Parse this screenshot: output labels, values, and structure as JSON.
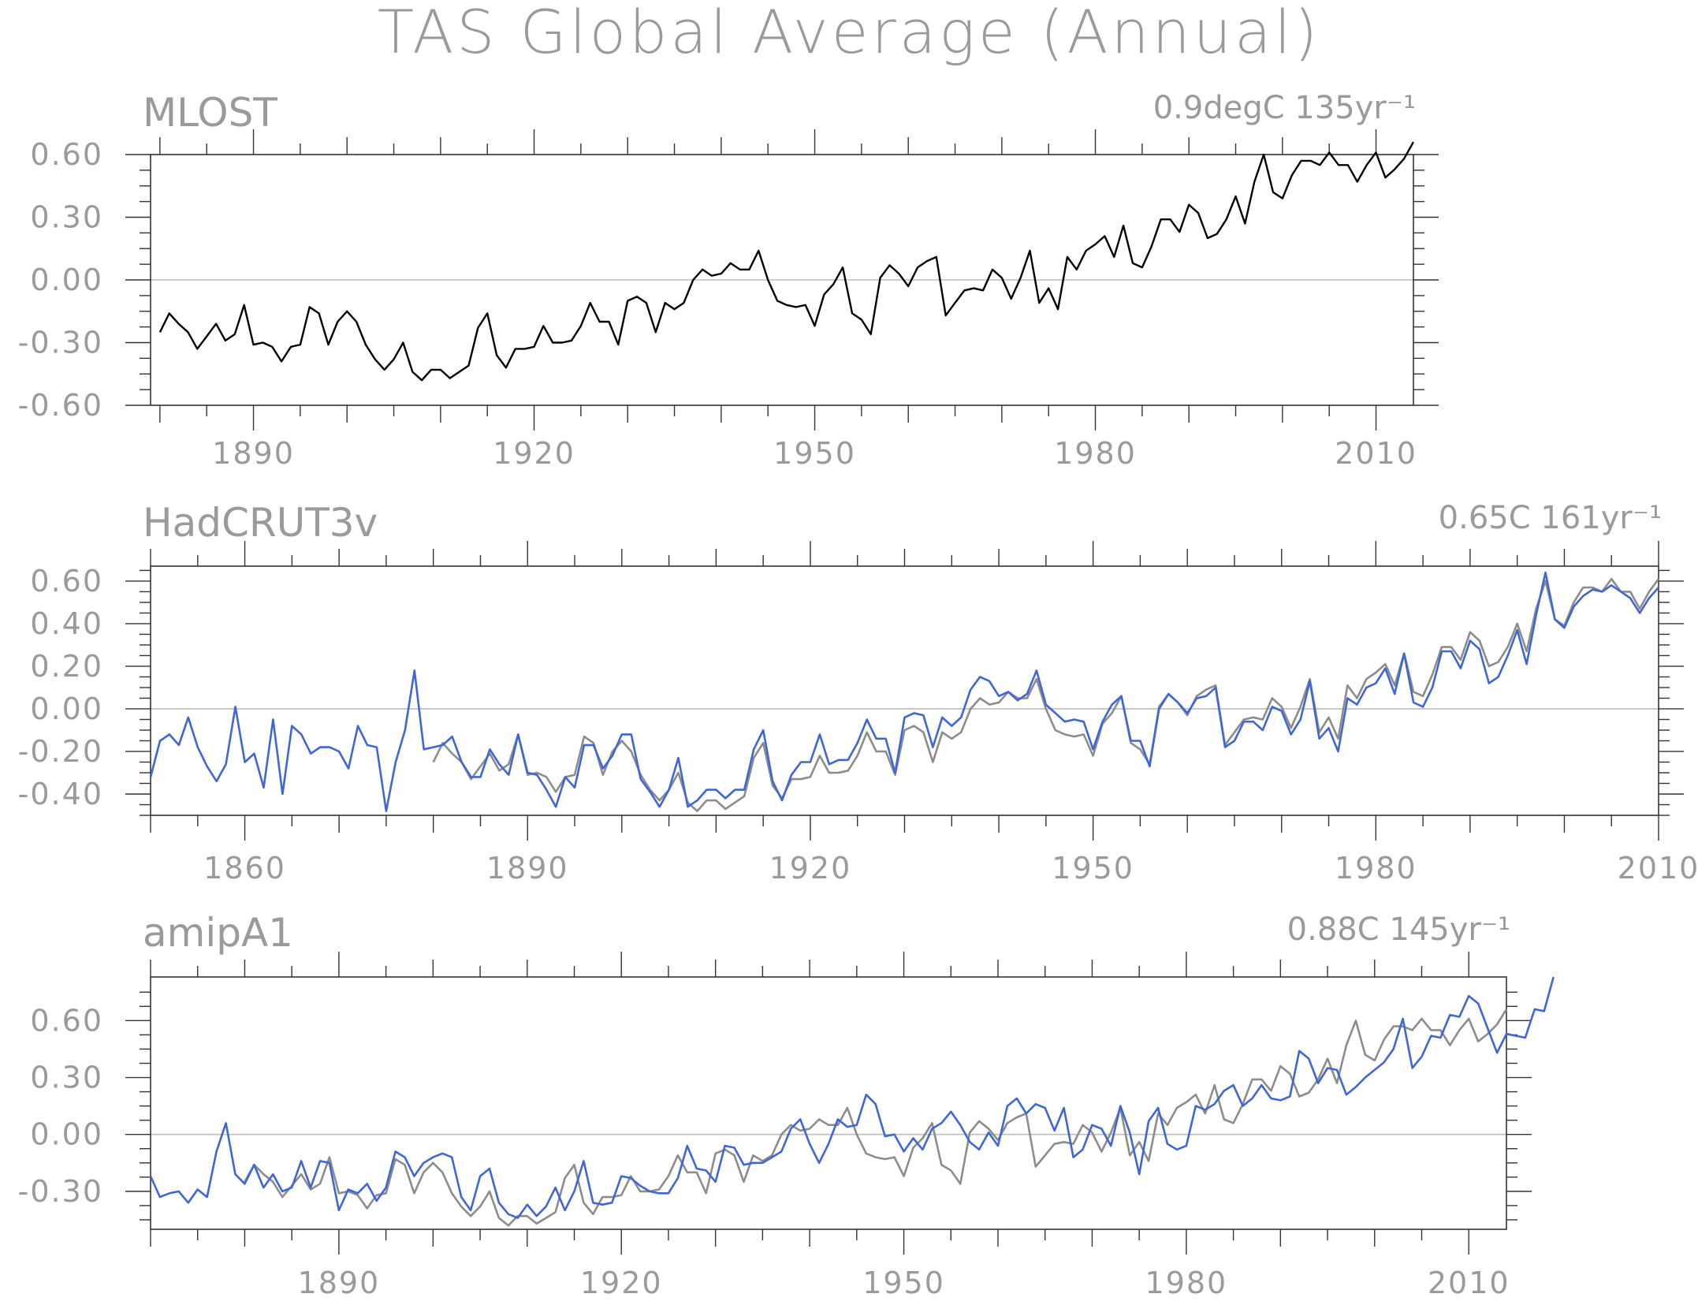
{
  "figure": {
    "title": "TAS Global Average (Annual)"
  },
  "colors": {
    "text": "#9a9a9a",
    "axis": "#333333",
    "zero_line": "#bdbdbd",
    "black_series": "#000000",
    "grey_series": "#8c8c8c",
    "blue_series": "#3f66d8"
  },
  "chart_data": [
    {
      "type": "line",
      "title": "MLOST",
      "annotation": "0.9degC 135yr⁻¹",
      "xlim": [
        1879,
        2014
      ],
      "ylim": [
        -0.6,
        0.6
      ],
      "x_ticks": [
        1890,
        1920,
        1950,
        1980,
        2010
      ],
      "x_tick_labels": [
        "1890",
        "1920",
        "1950",
        "1980",
        "2010"
      ],
      "y_ticks": [
        -0.6,
        -0.3,
        0.0,
        0.3,
        0.6
      ],
      "y_tick_labels": [
        "-0.60",
        "-0.30",
        "0.00",
        "0.30",
        "0.60"
      ],
      "series": [
        {
          "color": "black",
          "x_start": 1880,
          "values": [
            -0.25,
            -0.16,
            -0.21,
            -0.25,
            -0.33,
            -0.27,
            -0.21,
            -0.29,
            -0.26,
            -0.12,
            -0.31,
            -0.3,
            -0.32,
            -0.39,
            -0.32,
            -0.31,
            -0.13,
            -0.16,
            -0.31,
            -0.2,
            -0.15,
            -0.2,
            -0.31,
            -0.38,
            -0.43,
            -0.38,
            -0.3,
            -0.44,
            -0.48,
            -0.43,
            -0.43,
            -0.47,
            -0.44,
            -0.41,
            -0.23,
            -0.16,
            -0.36,
            -0.42,
            -0.33,
            -0.33,
            -0.32,
            -0.22,
            -0.3,
            -0.3,
            -0.29,
            -0.22,
            -0.11,
            -0.2,
            -0.2,
            -0.31,
            -0.1,
            -0.08,
            -0.11,
            -0.25,
            -0.11,
            -0.14,
            -0.11,
            0.0,
            0.05,
            0.02,
            0.03,
            0.08,
            0.05,
            0.05,
            0.14,
            0.0,
            -0.1,
            -0.12,
            -0.13,
            -0.12,
            -0.22,
            -0.07,
            -0.02,
            0.06,
            -0.16,
            -0.19,
            -0.26,
            0.01,
            0.07,
            0.03,
            -0.03,
            0.06,
            0.09,
            0.11,
            -0.17,
            -0.11,
            -0.05,
            -0.04,
            -0.05,
            0.05,
            0.01,
            -0.09,
            0.01,
            0.14,
            -0.11,
            -0.04,
            -0.14,
            0.11,
            0.05,
            0.14,
            0.17,
            0.21,
            0.11,
            0.26,
            0.08,
            0.06,
            0.16,
            0.29,
            0.29,
            0.23,
            0.36,
            0.32,
            0.2,
            0.22,
            0.29,
            0.4,
            0.27,
            0.47,
            0.6,
            0.42,
            0.39,
            0.5,
            0.57,
            0.57,
            0.55,
            0.61,
            0.55,
            0.55,
            0.47,
            0.55,
            0.61,
            0.49,
            0.53,
            0.58,
            0.66
          ]
        }
      ]
    },
    {
      "type": "line",
      "title": "HadCRUT3v",
      "annotation": "0.65C 161yr⁻¹",
      "xlim": [
        1850,
        2010
      ],
      "ylim": [
        -0.5,
        0.67
      ],
      "x_ticks": [
        1860,
        1890,
        1920,
        1950,
        1980,
        2010
      ],
      "x_tick_labels": [
        "1860",
        "1890",
        "1920",
        "1950",
        "1980",
        "2010"
      ],
      "y_ticks": [
        -0.4,
        -0.2,
        0.0,
        0.2,
        0.4,
        0.6
      ],
      "y_tick_labels": [
        "-0.40",
        "-0.20",
        "0.00",
        "0.20",
        "0.40",
        "0.60"
      ],
      "series": [
        {
          "color": "grey",
          "x_start": 1880,
          "values": [
            -0.25,
            -0.16,
            -0.21,
            -0.25,
            -0.33,
            -0.27,
            -0.21,
            -0.29,
            -0.26,
            -0.12,
            -0.31,
            -0.3,
            -0.32,
            -0.39,
            -0.32,
            -0.31,
            -0.13,
            -0.16,
            -0.31,
            -0.2,
            -0.15,
            -0.2,
            -0.31,
            -0.38,
            -0.43,
            -0.38,
            -0.3,
            -0.44,
            -0.48,
            -0.43,
            -0.43,
            -0.47,
            -0.44,
            -0.41,
            -0.23,
            -0.16,
            -0.36,
            -0.42,
            -0.33,
            -0.33,
            -0.32,
            -0.22,
            -0.3,
            -0.3,
            -0.29,
            -0.22,
            -0.11,
            -0.2,
            -0.2,
            -0.31,
            -0.1,
            -0.08,
            -0.11,
            -0.25,
            -0.11,
            -0.14,
            -0.11,
            0.0,
            0.05,
            0.02,
            0.03,
            0.08,
            0.05,
            0.05,
            0.14,
            0.0,
            -0.1,
            -0.12,
            -0.13,
            -0.12,
            -0.22,
            -0.07,
            -0.02,
            0.06,
            -0.16,
            -0.19,
            -0.26,
            0.01,
            0.07,
            0.03,
            -0.03,
            0.06,
            0.09,
            0.11,
            -0.17,
            -0.11,
            -0.05,
            -0.04,
            -0.05,
            0.05,
            0.01,
            -0.09,
            0.01,
            0.14,
            -0.11,
            -0.04,
            -0.14,
            0.11,
            0.05,
            0.14,
            0.17,
            0.21,
            0.11,
            0.26,
            0.08,
            0.06,
            0.16,
            0.29,
            0.29,
            0.23,
            0.36,
            0.32,
            0.2,
            0.22,
            0.29,
            0.4,
            0.27,
            0.47,
            0.6,
            0.42,
            0.39,
            0.5,
            0.57,
            0.57,
            0.55,
            0.61,
            0.55,
            0.55,
            0.47,
            0.55,
            0.61
          ]
        },
        {
          "color": "blue",
          "x_start": 1850,
          "values": [
            -0.32,
            -0.15,
            -0.12,
            -0.17,
            -0.04,
            -0.18,
            -0.27,
            -0.34,
            -0.26,
            0.01,
            -0.25,
            -0.21,
            -0.37,
            -0.05,
            -0.4,
            -0.08,
            -0.12,
            -0.21,
            -0.18,
            -0.18,
            -0.2,
            -0.28,
            -0.08,
            -0.17,
            -0.18,
            -0.48,
            -0.25,
            -0.1,
            0.18,
            -0.19,
            -0.18,
            -0.17,
            -0.13,
            -0.25,
            -0.32,
            -0.32,
            -0.19,
            -0.26,
            -0.31,
            -0.12,
            -0.3,
            -0.31,
            -0.38,
            -0.46,
            -0.32,
            -0.37,
            -0.17,
            -0.17,
            -0.28,
            -0.22,
            -0.12,
            -0.12,
            -0.33,
            -0.39,
            -0.46,
            -0.38,
            -0.23,
            -0.46,
            -0.43,
            -0.38,
            -0.38,
            -0.42,
            -0.38,
            -0.38,
            -0.19,
            -0.1,
            -0.34,
            -0.43,
            -0.31,
            -0.25,
            -0.25,
            -0.12,
            -0.26,
            -0.24,
            -0.24,
            -0.16,
            -0.05,
            -0.14,
            -0.14,
            -0.3,
            -0.04,
            -0.02,
            -0.03,
            -0.18,
            -0.04,
            -0.08,
            -0.04,
            0.09,
            0.15,
            0.13,
            0.06,
            0.08,
            0.04,
            0.07,
            0.18,
            0.02,
            -0.02,
            -0.06,
            -0.05,
            -0.06,
            -0.19,
            -0.06,
            0.02,
            0.06,
            -0.15,
            -0.15,
            -0.27,
            0.0,
            0.07,
            0.03,
            -0.02,
            0.05,
            0.06,
            0.1,
            -0.18,
            -0.15,
            -0.06,
            -0.06,
            -0.1,
            0.01,
            -0.01,
            -0.12,
            -0.05,
            0.13,
            -0.14,
            -0.09,
            -0.2,
            0.05,
            0.02,
            0.1,
            0.12,
            0.19,
            0.07,
            0.26,
            0.03,
            0.01,
            0.1,
            0.27,
            0.27,
            0.19,
            0.32,
            0.28,
            0.12,
            0.15,
            0.25,
            0.37,
            0.21,
            0.44,
            0.64,
            0.42,
            0.38,
            0.48,
            0.53,
            0.56,
            0.55,
            0.58,
            0.55,
            0.52,
            0.45,
            0.52,
            0.57
          ]
        }
      ]
    },
    {
      "type": "line",
      "title": "amipA1",
      "annotation": "0.88C 145yr⁻¹",
      "xlim": [
        1870,
        2014
      ],
      "ylim": [
        -0.5,
        0.83
      ],
      "x_ticks": [
        1890,
        1920,
        1950,
        1980,
        2010
      ],
      "x_tick_labels": [
        "1890",
        "1920",
        "1950",
        "1980",
        "2010"
      ],
      "y_ticks": [
        -0.3,
        0.0,
        0.3,
        0.6
      ],
      "y_tick_labels": [
        "-0.30",
        "0.00",
        "0.30",
        "0.60"
      ],
      "series": [
        {
          "color": "grey",
          "x_start": 1880,
          "values": [
            -0.25,
            -0.16,
            -0.21,
            -0.25,
            -0.33,
            -0.27,
            -0.21,
            -0.29,
            -0.26,
            -0.12,
            -0.31,
            -0.3,
            -0.32,
            -0.39,
            -0.32,
            -0.31,
            -0.13,
            -0.16,
            -0.31,
            -0.2,
            -0.15,
            -0.2,
            -0.31,
            -0.38,
            -0.43,
            -0.38,
            -0.3,
            -0.44,
            -0.48,
            -0.43,
            -0.43,
            -0.47,
            -0.44,
            -0.41,
            -0.23,
            -0.16,
            -0.36,
            -0.42,
            -0.33,
            -0.33,
            -0.32,
            -0.22,
            -0.3,
            -0.3,
            -0.29,
            -0.22,
            -0.11,
            -0.2,
            -0.2,
            -0.31,
            -0.1,
            -0.08,
            -0.11,
            -0.25,
            -0.11,
            -0.14,
            -0.11,
            0.0,
            0.05,
            0.02,
            0.03,
            0.08,
            0.05,
            0.05,
            0.14,
            0.0,
            -0.1,
            -0.12,
            -0.13,
            -0.12,
            -0.22,
            -0.07,
            -0.02,
            0.06,
            -0.16,
            -0.19,
            -0.26,
            0.01,
            0.07,
            0.03,
            -0.03,
            0.06,
            0.09,
            0.11,
            -0.17,
            -0.11,
            -0.05,
            -0.04,
            -0.05,
            0.05,
            0.01,
            -0.09,
            0.01,
            0.14,
            -0.11,
            -0.04,
            -0.14,
            0.11,
            0.05,
            0.14,
            0.17,
            0.21,
            0.11,
            0.26,
            0.08,
            0.06,
            0.16,
            0.29,
            0.29,
            0.23,
            0.36,
            0.32,
            0.2,
            0.22,
            0.29,
            0.4,
            0.27,
            0.47,
            0.6,
            0.42,
            0.39,
            0.5,
            0.57,
            0.57,
            0.55,
            0.61,
            0.55,
            0.55,
            0.47,
            0.55,
            0.61,
            0.49,
            0.53,
            0.58,
            0.66
          ]
        },
        {
          "color": "blue",
          "x_start": 1870,
          "values": [
            -0.22,
            -0.33,
            -0.31,
            -0.3,
            -0.36,
            -0.29,
            -0.33,
            -0.09,
            0.06,
            -0.21,
            -0.26,
            -0.16,
            -0.28,
            -0.21,
            -0.3,
            -0.28,
            -0.14,
            -0.28,
            -0.14,
            -0.15,
            -0.4,
            -0.29,
            -0.31,
            -0.26,
            -0.35,
            -0.28,
            -0.09,
            -0.12,
            -0.22,
            -0.15,
            -0.12,
            -0.1,
            -0.12,
            -0.33,
            -0.4,
            -0.22,
            -0.18,
            -0.36,
            -0.42,
            -0.44,
            -0.37,
            -0.43,
            -0.38,
            -0.28,
            -0.4,
            -0.3,
            -0.14,
            -0.36,
            -0.37,
            -0.36,
            -0.22,
            -0.23,
            -0.27,
            -0.3,
            -0.31,
            -0.31,
            -0.23,
            -0.06,
            -0.18,
            -0.19,
            -0.25,
            -0.06,
            -0.07,
            -0.16,
            -0.15,
            -0.15,
            -0.12,
            -0.09,
            0.03,
            0.08,
            -0.05,
            -0.15,
            -0.05,
            0.08,
            0.04,
            0.05,
            0.21,
            0.16,
            -0.01,
            0.0,
            -0.09,
            -0.02,
            -0.08,
            0.03,
            0.06,
            0.12,
            0.05,
            -0.04,
            -0.08,
            0.01,
            -0.06,
            0.15,
            0.19,
            0.11,
            0.16,
            0.14,
            0.02,
            0.14,
            -0.12,
            -0.08,
            0.05,
            0.03,
            -0.06,
            0.15,
            0.01,
            -0.21,
            0.07,
            0.14,
            -0.05,
            -0.08,
            -0.06,
            0.15,
            0.13,
            0.16,
            0.23,
            0.26,
            0.15,
            0.19,
            0.26,
            0.19,
            0.18,
            0.2,
            0.44,
            0.4,
            0.27,
            0.35,
            0.34,
            0.21,
            0.25,
            0.3,
            0.34,
            0.38,
            0.45,
            0.61,
            0.35,
            0.41,
            0.52,
            0.51,
            0.63,
            0.62,
            0.73,
            0.69,
            0.56,
            0.43,
            0.53,
            0.52,
            0.51,
            0.66,
            0.65,
            0.83
          ]
        }
      ]
    }
  ]
}
